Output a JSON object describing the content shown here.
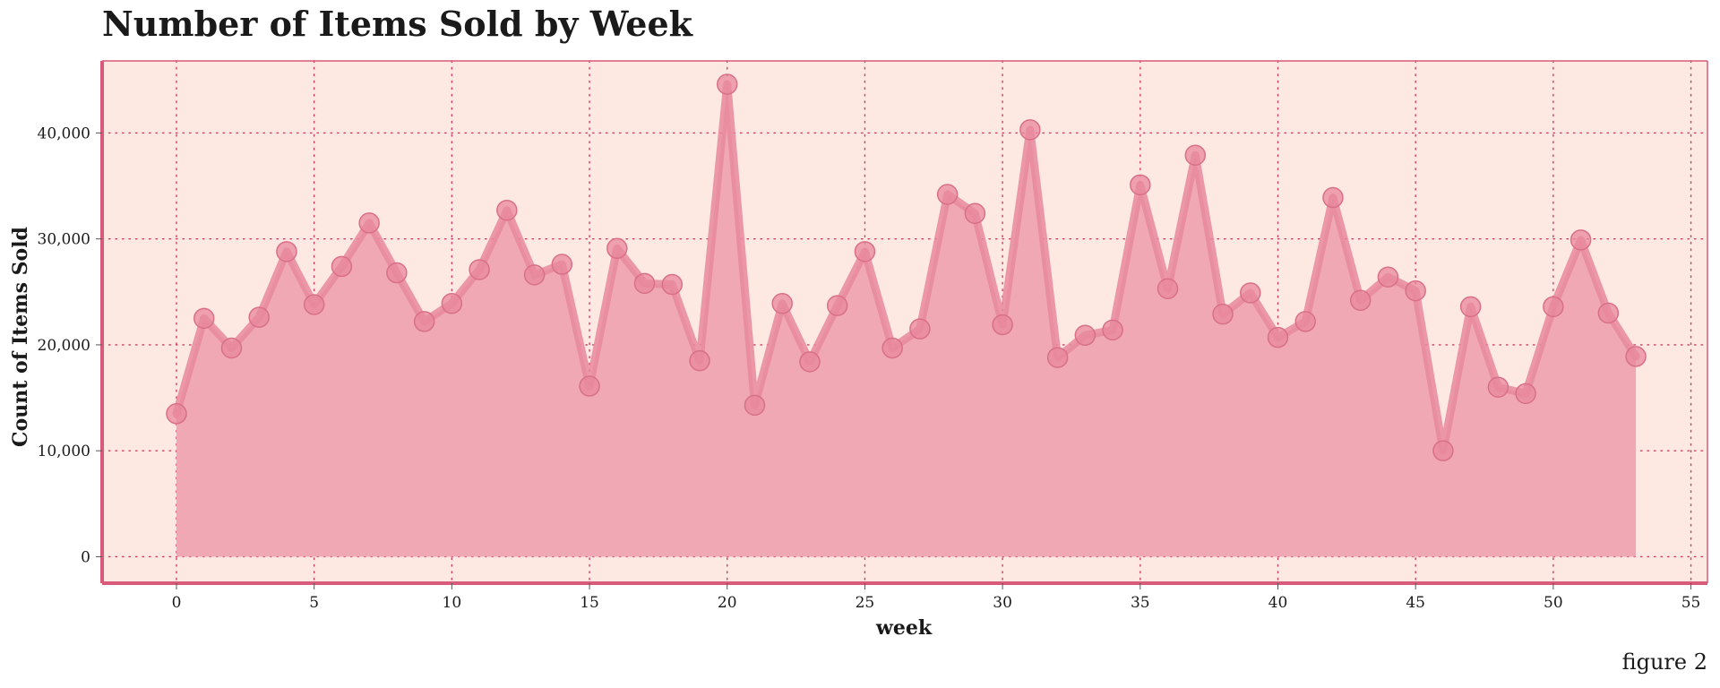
{
  "chart_data": {
    "type": "area",
    "title": "Number of Items Sold by Week",
    "xlabel": "week",
    "ylabel": "Count of Items Sold",
    "xlim": [
      -2.7,
      55.6
    ],
    "ylim": [
      -2500,
      46800
    ],
    "x_ticks": [
      0,
      5,
      10,
      15,
      20,
      25,
      30,
      35,
      40,
      45,
      50,
      55
    ],
    "x_tick_labels": [
      "0",
      "5",
      "10",
      "15",
      "20",
      "25",
      "30",
      "35",
      "40",
      "45",
      "50",
      "55"
    ],
    "y_ticks": [
      0,
      10000,
      20000,
      30000,
      40000
    ],
    "y_tick_labels": [
      "0",
      "10,000",
      "20,000",
      "30,000",
      "40,000"
    ],
    "grid": true,
    "series": [
      {
        "x": [
          0,
          1,
          2,
          3,
          4,
          5,
          6,
          7,
          8,
          9,
          10,
          11,
          12,
          13,
          14,
          15,
          16,
          17,
          18,
          19,
          20,
          21,
          22,
          23,
          24,
          25,
          26,
          27,
          28,
          29,
          30,
          31,
          32,
          33,
          34,
          35,
          36,
          37,
          38,
          39,
          40,
          41,
          42,
          43,
          44,
          45,
          46,
          47,
          48,
          49,
          50,
          51,
          52,
          53
        ],
        "values": [
          13500,
          22500,
          19700,
          22600,
          28800,
          23800,
          27400,
          31500,
          26800,
          22200,
          23900,
          27100,
          32700,
          26600,
          27600,
          16100,
          29100,
          25800,
          25700,
          18500,
          44600,
          14300,
          23900,
          18400,
          23700,
          28800,
          19700,
          21500,
          34200,
          32400,
          21900,
          40300,
          18800,
          20900,
          21400,
          35100,
          25300,
          37900,
          22900,
          24900,
          20700,
          22200,
          33900,
          24200,
          26400,
          25100,
          10000,
          23600,
          16000,
          15400,
          23600,
          29900,
          23000,
          18900
        ]
      }
    ],
    "colors": {
      "plot_background": "#fde8e2",
      "area_fill": "#f0a8b4",
      "line": "#e8889c",
      "marker": "#e8889c",
      "frame": "#d95a7a",
      "grid": "#d23c64"
    },
    "annotations": [
      "figure 2"
    ]
  }
}
